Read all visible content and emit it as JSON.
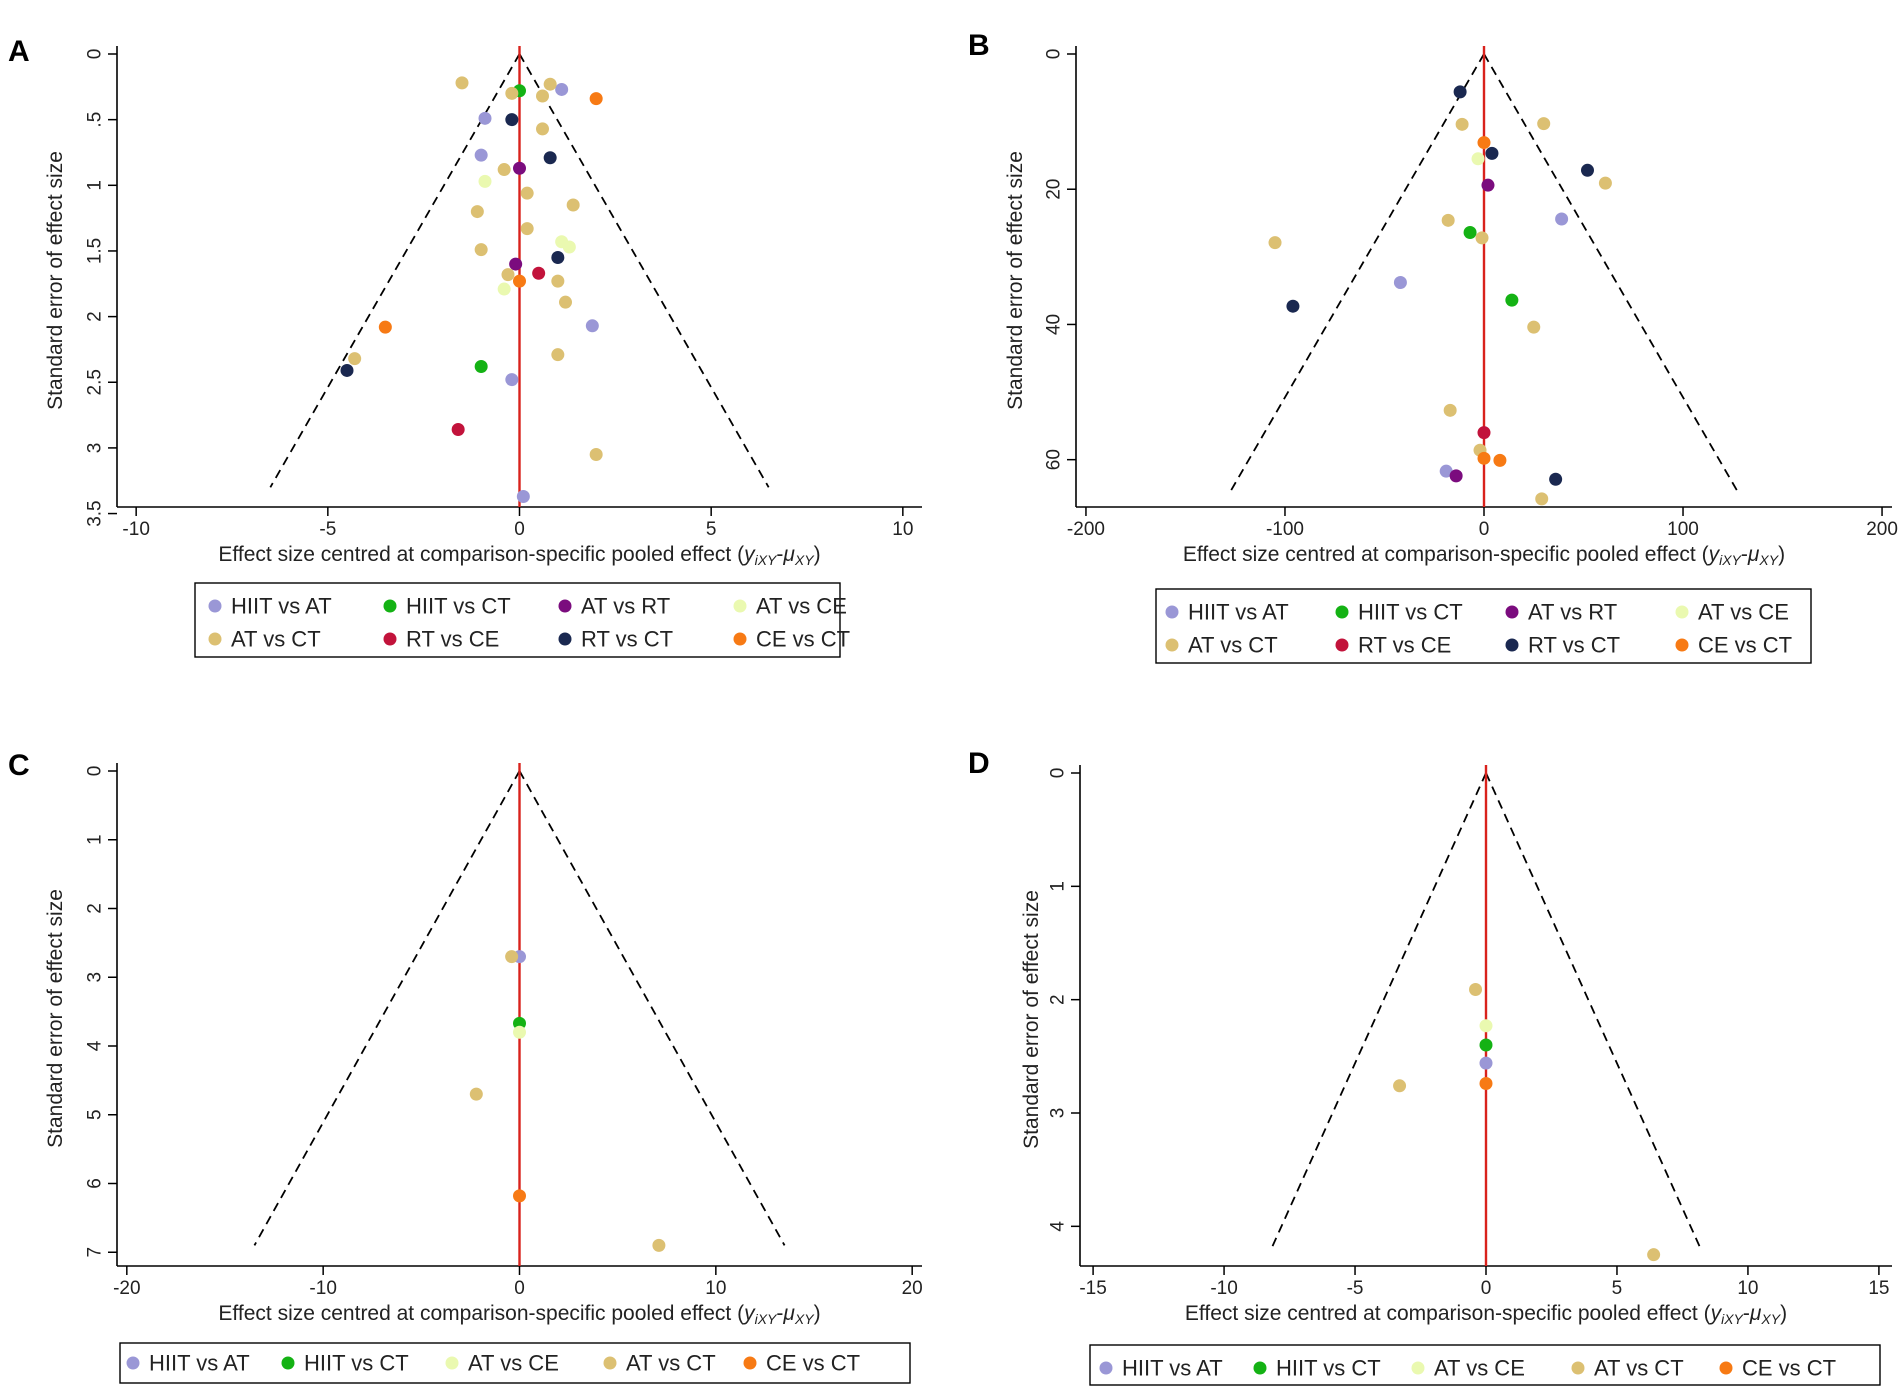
{
  "colors": {
    "HIIT vs AT": "#9a97d6",
    "HIIT vs CT": "#14b214",
    "AT vs RT": "#7b0c7e",
    "AT vs CE": "#eaf9b0",
    "AT vs CT": "#dcc072",
    "RT vs CE": "#c2133b",
    "RT vs CT": "#1a2850",
    "CE vs CT": "#f77a14",
    "funnel": "#000000",
    "centre_line": "#d9221c"
  },
  "chart_data": [
    {
      "id": "A",
      "panel_label": "A",
      "type": "scatter",
      "title": "",
      "xlabel_pre": "Effect size centred at comparison-specific pooled effect (",
      "xlabel_y": "y",
      "xlabel_ysub": "iXY",
      "xlabel_mid": "-",
      "xlabel_mu": "μ",
      "xlabel_musub": "XY",
      "xlabel_post": ")",
      "ylabel": "Standard error of effect size",
      "xlim": [
        -10.5,
        10.5
      ],
      "ylim": [
        0,
        3.45
      ],
      "xticks": [
        -10,
        -5,
        0,
        5,
        10
      ],
      "xtick_labels": [
        "-10",
        "-5",
        "0",
        "5",
        "10"
      ],
      "yticks": [
        0,
        0.5,
        1,
        1.5,
        2,
        2.5,
        3,
        3.5
      ],
      "ytick_labels": [
        "0",
        ".5",
        "1",
        "1.5",
        "2",
        "2.5",
        "3",
        "3.5"
      ],
      "funnel": {
        "apex": [
          0,
          0
        ],
        "left_end": [
          -6.5,
          3.3
        ],
        "right_end": [
          6.5,
          3.3
        ]
      },
      "legend_items": [
        "HIIT vs AT",
        "HIIT vs CT",
        "AT vs RT",
        "AT vs CE",
        "AT vs CT",
        "RT vs CE",
        "RT vs CT",
        "CE vs CT"
      ],
      "series": [
        {
          "name": "HIIT vs AT",
          "points": [
            [
              1.1,
              0.27
            ],
            [
              -0.9,
              0.49
            ],
            [
              -1.0,
              0.77
            ],
            [
              1.9,
              2.07
            ],
            [
              -0.2,
              2.48
            ],
            [
              0.1,
              3.37
            ]
          ]
        },
        {
          "name": "HIIT vs CT",
          "points": [
            [
              0.0,
              0.28
            ],
            [
              -1.0,
              2.38
            ]
          ]
        },
        {
          "name": "AT vs RT",
          "points": [
            [
              0.0,
              0.87
            ],
            [
              -0.1,
              1.6
            ]
          ]
        },
        {
          "name": "AT vs CE",
          "points": [
            [
              -0.9,
              0.97
            ],
            [
              1.1,
              1.43
            ],
            [
              1.3,
              1.47
            ],
            [
              -0.4,
              1.79
            ]
          ]
        },
        {
          "name": "AT vs CT",
          "points": [
            [
              -1.5,
              0.22
            ],
            [
              0.8,
              0.23
            ],
            [
              -0.2,
              0.3
            ],
            [
              0.6,
              0.32
            ],
            [
              0.6,
              0.57
            ],
            [
              -0.4,
              0.88
            ],
            [
              0.2,
              1.06
            ],
            [
              1.4,
              1.15
            ],
            [
              -1.1,
              1.2
            ],
            [
              0.2,
              1.33
            ],
            [
              -1.0,
              1.49
            ],
            [
              -0.3,
              1.68
            ],
            [
              1.0,
              1.73
            ],
            [
              1.2,
              1.89
            ],
            [
              -4.3,
              2.32
            ],
            [
              1.0,
              2.29
            ],
            [
              2.0,
              3.05
            ]
          ]
        },
        {
          "name": "RT vs CE",
          "points": [
            [
              0.5,
              1.67
            ],
            [
              -1.6,
              2.86
            ]
          ]
        },
        {
          "name": "RT vs CT",
          "points": [
            [
              -0.2,
              0.5
            ],
            [
              0.8,
              0.79
            ],
            [
              1.0,
              1.55
            ],
            [
              -4.5,
              2.41
            ]
          ]
        },
        {
          "name": "CE vs CT",
          "points": [
            [
              2.0,
              0.34
            ],
            [
              0.0,
              1.73
            ],
            [
              -3.5,
              2.08
            ]
          ]
        }
      ]
    },
    {
      "id": "B",
      "panel_label": "B",
      "type": "scatter",
      "title": "",
      "xlabel_pre": "Effect size centred at comparison-specific pooled effect (",
      "xlabel_y": "y",
      "xlabel_ysub": "iXY",
      "xlabel_mid": "-",
      "xlabel_mu": "μ",
      "xlabel_musub": "XY",
      "xlabel_post": ")",
      "ylabel": "Standard error of effect size",
      "xlim": [
        -205,
        205
      ],
      "ylim": [
        0,
        67
      ],
      "xticks": [
        -200,
        -100,
        0,
        100,
        200
      ],
      "xtick_labels": [
        "-200",
        "-100",
        "0",
        "100",
        "200"
      ],
      "yticks": [
        0,
        20,
        40,
        60
      ],
      "ytick_labels": [
        "0",
        "20",
        "40",
        "60"
      ],
      "funnel": {
        "apex": [
          0,
          0
        ],
        "left_end": [
          -128,
          65
        ],
        "right_end": [
          128,
          65
        ]
      },
      "legend_items": [
        "HIIT vs AT",
        "HIIT vs CT",
        "AT vs RT",
        "AT vs CE",
        "AT vs CT",
        "RT vs CE",
        "RT vs CT",
        "CE vs CT"
      ],
      "series": [
        {
          "name": "HIIT vs AT",
          "points": [
            [
              39,
              24.4
            ],
            [
              -42,
              33.8
            ],
            [
              -19,
              61.7
            ]
          ]
        },
        {
          "name": "HIIT vs CT",
          "points": [
            [
              -7,
              26.4
            ],
            [
              14,
              36.4
            ]
          ]
        },
        {
          "name": "AT vs RT",
          "points": [
            [
              2,
              19.4
            ],
            [
              -14,
              62.4
            ]
          ]
        },
        {
          "name": "AT vs CE",
          "points": [
            [
              -3,
              15.5
            ]
          ]
        },
        {
          "name": "AT vs CT",
          "points": [
            [
              -11,
              10.4
            ],
            [
              30,
              10.3
            ],
            [
              61,
              19.1
            ],
            [
              -18,
              24.6
            ],
            [
              -105,
              27.9
            ],
            [
              -1,
              27.2
            ],
            [
              25,
              40.4
            ],
            [
              -17,
              52.7
            ],
            [
              -2,
              58.6
            ],
            [
              29,
              65.8
            ]
          ]
        },
        {
          "name": "RT vs CE",
          "points": [
            [
              0,
              56.0
            ]
          ]
        },
        {
          "name": "RT vs CT",
          "points": [
            [
              -12,
              5.6
            ],
            [
              4,
              14.7
            ],
            [
              52,
              17.2
            ],
            [
              -96,
              37.3
            ],
            [
              36,
              62.9
            ]
          ]
        },
        {
          "name": "CE vs CT",
          "points": [
            [
              0,
              13.1
            ],
            [
              0,
              59.8
            ],
            [
              8,
              60.1
            ]
          ]
        }
      ]
    },
    {
      "id": "C",
      "panel_label": "C",
      "type": "scatter",
      "title": "",
      "xlabel_pre": "Effect size centred at comparison-specific pooled effect (",
      "xlabel_y": "y",
      "xlabel_ysub": "iXY",
      "xlabel_mid": "-",
      "xlabel_mu": "μ",
      "xlabel_musub": "XY",
      "xlabel_post": ")",
      "ylabel": "Standard error of effect size",
      "xlim": [
        -20.5,
        20.5
      ],
      "ylim": [
        0,
        7.2
      ],
      "xticks": [
        -20,
        -10,
        0,
        10,
        20
      ],
      "xtick_labels": [
        "-20",
        "-10",
        "0",
        "10",
        "20"
      ],
      "yticks": [
        0,
        1,
        2,
        3,
        4,
        5,
        6,
        7
      ],
      "ytick_labels": [
        "0",
        "1",
        "2",
        "3",
        "4",
        "5",
        "6",
        "7"
      ],
      "funnel": {
        "apex": [
          0,
          0
        ],
        "left_end": [
          -13.5,
          6.9
        ],
        "right_end": [
          13.5,
          6.9
        ]
      },
      "legend_items": [
        "HIIT vs AT",
        "HIIT vs CT",
        "AT vs CE",
        "AT vs CT",
        "CE vs CT"
      ],
      "series": [
        {
          "name": "HIIT vs AT",
          "points": [
            [
              0.0,
              2.7
            ]
          ]
        },
        {
          "name": "HIIT vs CT",
          "points": [
            [
              0.0,
              3.67
            ]
          ]
        },
        {
          "name": "AT vs CE",
          "points": [
            [
              0.0,
              3.8
            ]
          ]
        },
        {
          "name": "AT vs CT",
          "points": [
            [
              -0.4,
              2.7
            ],
            [
              -2.2,
              4.7
            ],
            [
              7.1,
              6.9
            ]
          ]
        },
        {
          "name": "CE vs CT",
          "points": [
            [
              0.0,
              6.18
            ]
          ]
        }
      ]
    },
    {
      "id": "D",
      "panel_label": "D",
      "type": "scatter",
      "title": "",
      "xlabel_pre": "Effect size centred at comparison-specific pooled effect (",
      "xlabel_y": "y",
      "xlabel_ysub": "iXY",
      "xlabel_mid": "-",
      "xlabel_mu": "μ",
      "xlabel_musub": "XY",
      "xlabel_post": ")",
      "ylabel": "Standard error of effect size",
      "xlim": [
        -15.5,
        15.5
      ],
      "ylim": [
        0,
        4.35
      ],
      "xticks": [
        -15,
        -10,
        -5,
        0,
        5,
        10,
        15
      ],
      "xtick_labels": [
        "-15",
        "-10",
        "-5",
        "0",
        "5",
        "10",
        "15"
      ],
      "yticks": [
        0,
        1,
        2,
        3,
        4
      ],
      "ytick_labels": [
        "0",
        "1",
        "2",
        "3",
        "4"
      ],
      "funnel": {
        "apex": [
          0,
          0
        ],
        "left_end": [
          -8.2,
          4.2
        ],
        "right_end": [
          8.2,
          4.2
        ]
      },
      "legend_items": [
        "HIIT vs AT",
        "HIIT vs CT",
        "AT vs CE",
        "AT vs CT",
        "CE vs CT"
      ],
      "series": [
        {
          "name": "HIIT vs AT",
          "points": [
            [
              0.0,
              2.56
            ]
          ]
        },
        {
          "name": "HIIT vs CT",
          "points": [
            [
              0.0,
              2.4
            ]
          ]
        },
        {
          "name": "AT vs CE",
          "points": [
            [
              0.0,
              2.23
            ]
          ]
        },
        {
          "name": "AT vs CT",
          "points": [
            [
              -0.4,
              1.91
            ],
            [
              -3.3,
              2.76
            ],
            [
              6.4,
              4.25
            ]
          ]
        },
        {
          "name": "CE vs CT",
          "points": [
            [
              0.0,
              2.74
            ]
          ]
        }
      ]
    }
  ]
}
